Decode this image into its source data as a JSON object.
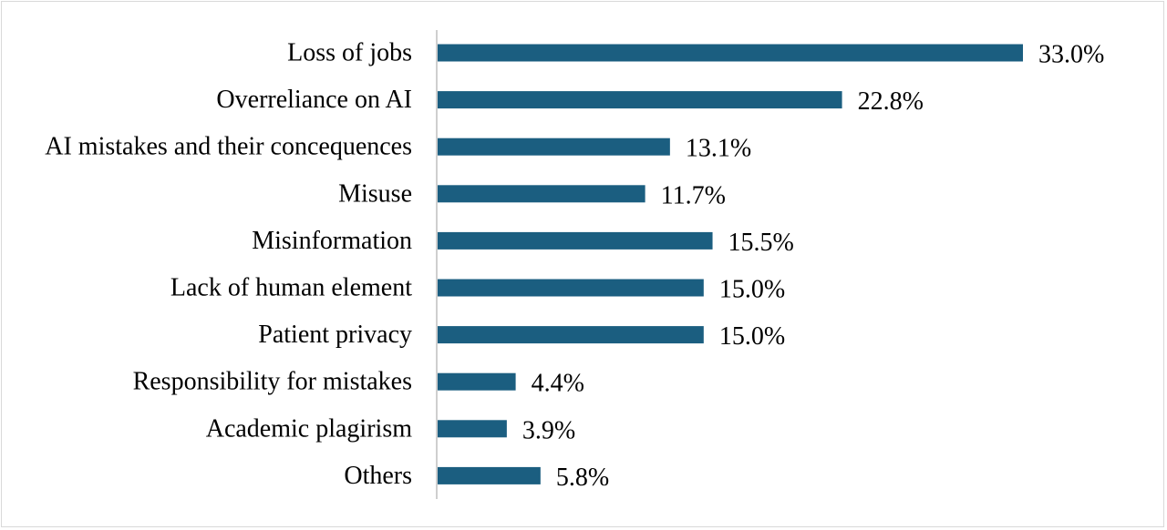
{
  "colors": {
    "bar": "#1b5e80",
    "axis": "#bfbfbf",
    "frame": "#d9d9d9"
  },
  "chart_data": {
    "type": "bar",
    "orientation": "horizontal",
    "categories": [
      "Loss of jobs",
      "Overreliance on AI",
      "AI mistakes and their concequences",
      "Misuse",
      "Misinformation",
      "Lack of human element",
      "Patient privacy",
      "Responsibility for mistakes",
      "Academic plagirism",
      "Others"
    ],
    "values": [
      33.0,
      22.8,
      13.1,
      11.7,
      15.5,
      15.0,
      15.0,
      4.4,
      3.9,
      5.8
    ],
    "value_labels": [
      "33.0%",
      "22.8%",
      "13.1%",
      "11.7%",
      "15.5%",
      "15.0%",
      "15.0%",
      "4.4%",
      "3.9%",
      "5.8%"
    ],
    "unit": "%",
    "xlim": [
      0,
      33.0
    ],
    "grid": false,
    "legend": "none"
  }
}
